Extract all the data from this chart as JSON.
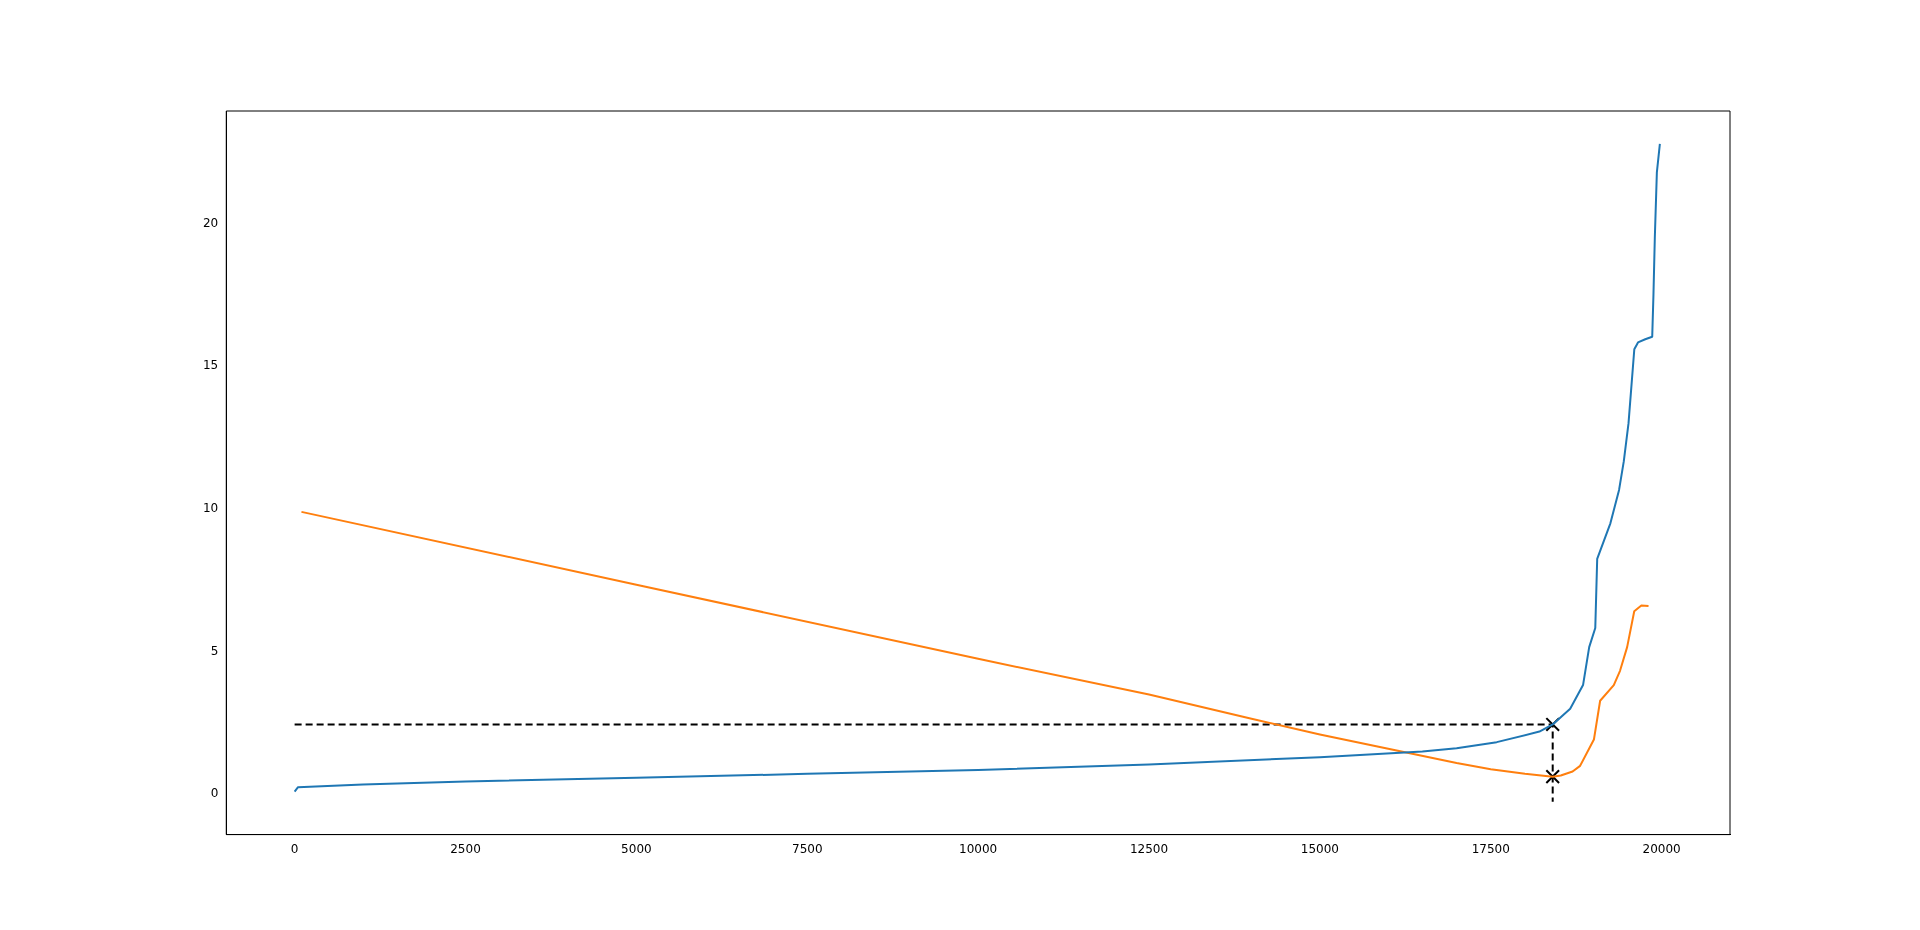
{
  "chart_data": {
    "type": "line",
    "xlim": [
      -1000,
      21000
    ],
    "xticks": [
      0,
      2500,
      5000,
      7500,
      10000,
      12500,
      15000,
      17500,
      20000
    ],
    "ylim": [
      -1.41,
      23.95
    ],
    "yticks": [
      0,
      5,
      10,
      15,
      20
    ],
    "series": [
      {
        "color": "#1f77b4",
        "x": [
          0,
          50,
          1000,
          2500,
          5000,
          7500,
          10000,
          12500,
          15000,
          16500,
          17000,
          17587,
          18212,
          18406,
          18662,
          18850,
          18940,
          19029,
          19057,
          19250,
          19377,
          19446,
          19515,
          19600,
          19654,
          19760,
          19862,
          19880,
          19900,
          19930,
          19974
        ],
        "values": [
          0.1,
          0.25,
          0.35,
          0.45,
          0.58,
          0.72,
          0.85,
          1.05,
          1.3,
          1.5,
          1.62,
          1.83,
          2.2,
          2.45,
          3.0,
          3.83,
          5.16,
          5.83,
          8.25,
          9.5,
          10.67,
          11.67,
          13.0,
          15.6,
          15.84,
          15.95,
          16.04,
          17.5,
          19.5,
          21.8,
          22.8
        ]
      },
      {
        "color": "#ff7f0e",
        "x": [
          100,
          5000,
          10000,
          12500,
          14000,
          15000,
          16000,
          17000,
          17500,
          18000,
          18406,
          18524,
          18697,
          18807,
          19009,
          19100,
          19300,
          19391,
          19495,
          19599,
          19703,
          19808
        ],
        "values": [
          9.9,
          7.35,
          4.75,
          3.5,
          2.65,
          2.1,
          1.6,
          1.1,
          0.88,
          0.72,
          0.62,
          0.66,
          0.8,
          1.0,
          1.92,
          3.28,
          3.83,
          4.33,
          5.16,
          6.42,
          6.62,
          6.6
        ]
      },
      {
        "color": "#000000",
        "line_style": "dashed",
        "marker": "none",
        "x": [
          0,
          18406,
          18406
        ],
        "values": [
          2.45,
          2.45,
          -0.26
        ]
      },
      {
        "type": "scatter",
        "color": "#000000",
        "marker": "cross",
        "x": [
          18406,
          18406
        ],
        "values": [
          2.45,
          0.62
        ]
      }
    ]
  }
}
